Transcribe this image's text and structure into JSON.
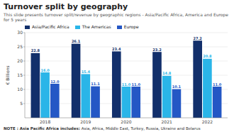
{
  "chart_data": {
    "type": "bar",
    "title": "Turnover split by geography",
    "subtitle": "This slide presents turnover split/revenue by geographic regions - Asia/Pacific Africa, America and Europe for 5 years",
    "annotations": [
      "NOTE : Asia Pacific Africa includes:",
      "Asia, Africa, Middle East, Turkey, Russia, Ukraine and Belarus"
    ],
    "categories": [
      "2018",
      "2019",
      "2020",
      "2021",
      "2022"
    ],
    "series": [
      {
        "name": "Asia/Pacific Africa",
        "color": "#122f6b",
        "values": [
          22.8,
          26.1,
          23.4,
          23.2,
          27.2
        ],
        "value_labels": [
          "22.8",
          "26.1",
          "23.4",
          "23.2",
          "27.2"
        ]
      },
      {
        "name": "The Americas",
        "color": "#2ab5e8",
        "values": [
          16.0,
          15.4,
          11.0,
          14.8,
          20.8
        ],
        "value_labels": [
          "16.0",
          "15.4",
          "11.0",
          "14.8",
          "20.8"
        ]
      },
      {
        "name": "Europe",
        "color": "#2457c5",
        "values": [
          12.0,
          11.1,
          11.0,
          10.1,
          11.0
        ],
        "value_labels": [
          "12.0",
          "11.1",
          "11.0",
          "10.1",
          "11.0"
        ]
      }
    ],
    "y_label": "€ Billions",
    "ylim": [
      0,
      30
    ],
    "yticks": [
      5,
      10,
      15,
      20,
      25,
      30
    ],
    "grid": true,
    "legend": "top",
    "data_labels": true
  }
}
